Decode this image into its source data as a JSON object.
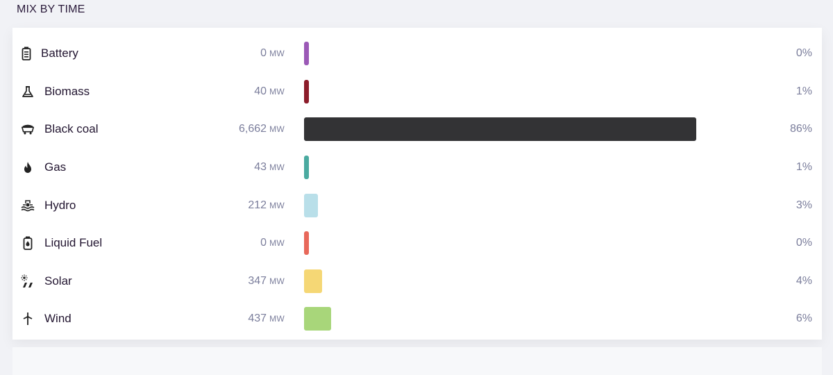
{
  "section": {
    "title": "MIX BY TIME"
  },
  "chart_data": {
    "type": "bar",
    "orientation": "horizontal",
    "unit": "MW",
    "categories": [
      "Battery",
      "Biomass",
      "Black coal",
      "Gas",
      "Hydro",
      "Liquid Fuel",
      "Solar",
      "Wind"
    ],
    "values": [
      0,
      40,
      6662,
      43,
      212,
      0,
      347,
      437
    ],
    "percent": [
      0,
      1,
      86,
      1,
      3,
      0,
      4,
      6
    ],
    "value_labels": [
      "0",
      "40",
      "6,662",
      "43",
      "212",
      "0",
      "347",
      "437"
    ],
    "percent_labels": [
      "0%",
      "1%",
      "86%",
      "1%",
      "3%",
      "0%",
      "4%",
      "6%"
    ],
    "colors": [
      "#9b59b6",
      "#8c1c2a",
      "#333335",
      "#4aaaa0",
      "#b9dfe9",
      "#e8685a",
      "#f5d775",
      "#a8d67a"
    ],
    "icons": [
      "battery-icon",
      "biomass-icon",
      "coal-cart-icon",
      "flame-icon",
      "hydro-icon",
      "fuel-can-icon",
      "solar-icon",
      "wind-turbine-icon"
    ]
  }
}
